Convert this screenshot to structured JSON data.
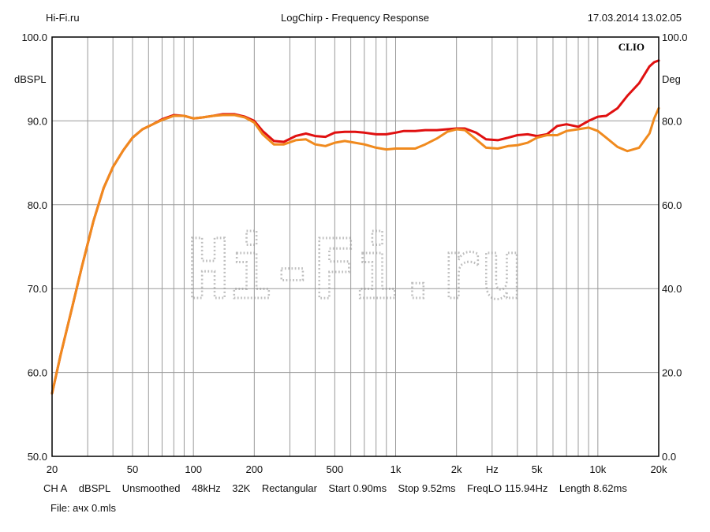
{
  "header": {
    "left": "Hi-Fi.ru",
    "center": "LogChirp - Frequency Response",
    "right": "17.03.2014 13.02.05"
  },
  "brand_label": "CLIO",
  "watermark_text": "Hi-Fi.ru",
  "footer": {
    "line1": [
      "CH A",
      "dBSPL",
      "Unsmoothed",
      "48kHz",
      "32K",
      "Rectangular",
      "Start 0.90ms",
      "Stop 9.52ms",
      "FreqLO 115.94Hz",
      "Length 8.62ms"
    ],
    "line2": "File: ачх 0.mls"
  },
  "colors": {
    "series_red": "#e01010",
    "series_orange": "#f08a1e",
    "watermark": "#bfbfbf"
  },
  "chart_data": {
    "type": "line",
    "title": "LogChirp - Frequency Response",
    "xlabel": "Hz",
    "ylabel": "dBSPL",
    "ylabel_right": "Deg",
    "xscale": "log",
    "xlim": [
      20,
      20000
    ],
    "ylim": [
      50,
      100
    ],
    "ylim_right": [
      0,
      100
    ],
    "x_ticks": [
      {
        "value": 20,
        "label": "20"
      },
      {
        "value": 50,
        "label": "50"
      },
      {
        "value": 100,
        "label": "100"
      },
      {
        "value": 200,
        "label": "200"
      },
      {
        "value": 500,
        "label": "500"
      },
      {
        "value": 1000,
        "label": "1k"
      },
      {
        "value": 2000,
        "label": "2k"
      },
      {
        "value": 5000,
        "label": "5k"
      },
      {
        "value": 10000,
        "label": "10k"
      },
      {
        "value": 20000,
        "label": "20k"
      }
    ],
    "y_ticks": [
      "50.0",
      "60.0",
      "70.0",
      "80.0",
      "90.0",
      "100.0"
    ],
    "y_ticks_right": [
      "0.0",
      "20.0",
      "40.0",
      "60.0",
      "80.0",
      "100.0"
    ],
    "grid": true,
    "series": [
      {
        "color": "#e01010",
        "x": [
          20,
          22,
          25,
          28,
          32,
          36,
          40,
          45,
          50,
          56,
          63,
          70,
          80,
          90,
          100,
          110,
          125,
          140,
          160,
          180,
          200,
          220,
          250,
          280,
          320,
          360,
          400,
          450,
          500,
          560,
          630,
          700,
          800,
          900,
          1000,
          1100,
          1250,
          1400,
          1600,
          1800,
          2000,
          2200,
          2500,
          2800,
          3200,
          3600,
          4000,
          4500,
          5000,
          5600,
          6300,
          7000,
          8000,
          9000,
          10000,
          11000,
          12500,
          14000,
          16000,
          18000,
          19000,
          20000
        ],
        "y": [
          57.5,
          62,
          67.5,
          72.5,
          78,
          82,
          84.5,
          86.5,
          88,
          89,
          89.6,
          90.2,
          90.7,
          90.6,
          90.3,
          90.4,
          90.6,
          90.8,
          90.8,
          90.5,
          90,
          88.8,
          87.6,
          87.5,
          88.2,
          88.5,
          88.2,
          88.1,
          88.6,
          88.7,
          88.7,
          88.6,
          88.4,
          88.4,
          88.6,
          88.8,
          88.8,
          88.9,
          88.9,
          89,
          89.1,
          89.1,
          88.6,
          87.8,
          87.7,
          88,
          88.3,
          88.4,
          88.2,
          88.4,
          89.4,
          89.6,
          89.3,
          90,
          90.5,
          90.6,
          91.5,
          93,
          94.5,
          96.5,
          97,
          97.2
        ]
      },
      {
        "color": "#f08a1e",
        "x": [
          20,
          22,
          25,
          28,
          32,
          36,
          40,
          45,
          50,
          56,
          63,
          70,
          80,
          90,
          100,
          110,
          125,
          140,
          160,
          180,
          200,
          220,
          250,
          280,
          320,
          360,
          400,
          450,
          500,
          560,
          630,
          700,
          800,
          900,
          1000,
          1100,
          1250,
          1400,
          1600,
          1800,
          2000,
          2200,
          2500,
          2800,
          3200,
          3600,
          4000,
          4500,
          5000,
          5600,
          6300,
          7000,
          8000,
          9000,
          10000,
          11000,
          12500,
          14000,
          16000,
          18000,
          19000,
          20000
        ],
        "y": [
          57.5,
          62,
          67.5,
          72.5,
          78,
          82,
          84.5,
          86.5,
          88,
          89,
          89.6,
          90.1,
          90.6,
          90.6,
          90.3,
          90.4,
          90.6,
          90.7,
          90.7,
          90.4,
          89.8,
          88.4,
          87.2,
          87.2,
          87.7,
          87.8,
          87.2,
          87,
          87.4,
          87.6,
          87.4,
          87.2,
          86.8,
          86.6,
          86.7,
          86.7,
          86.7,
          87.2,
          87.9,
          88.7,
          89,
          88.9,
          87.8,
          86.8,
          86.7,
          87,
          87.1,
          87.4,
          88,
          88.3,
          88.3,
          88.8,
          89,
          89.2,
          88.8,
          88,
          86.9,
          86.4,
          86.8,
          88.5,
          90.3,
          91.5
        ]
      }
    ]
  }
}
